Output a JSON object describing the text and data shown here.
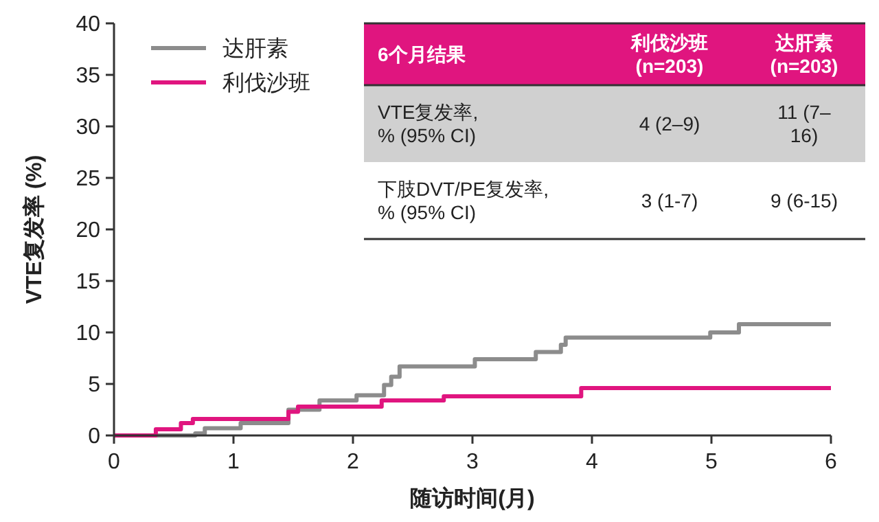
{
  "chart_data": {
    "type": "step",
    "xlabel": "随访时间(月)",
    "ylabel": "VTE复发率 (%)",
    "xlim": [
      0,
      6
    ],
    "xticks": [
      0,
      1,
      2,
      3,
      4,
      5,
      6
    ],
    "ylim": [
      0,
      40
    ],
    "yticks": [
      0,
      5,
      10,
      15,
      20,
      25,
      30,
      35,
      40
    ],
    "grid": false,
    "legend": "top left",
    "line_style": "solid",
    "series": [
      {
        "name": "达肝素",
        "color": "#8c8c8c",
        "x": [
          0,
          0.68,
          0.76,
          1.06,
          1.46,
          1.72,
          2.03,
          2.26,
          2.32,
          2.39,
          3.02,
          3.53,
          3.74,
          3.78,
          4.99,
          5.23,
          6
        ],
        "values": [
          0,
          0.2,
          0.7,
          1.2,
          2.5,
          3.4,
          3.9,
          4.9,
          5.7,
          6.7,
          7.4,
          8.1,
          8.8,
          9.5,
          10,
          10.8,
          10.8
        ]
      },
      {
        "name": "利伐沙班",
        "color": "#e0157f",
        "x": [
          0,
          0.35,
          0.56,
          0.66,
          1.46,
          1.54,
          2.24,
          2.76,
          3.91,
          6
        ],
        "values": [
          0,
          0.6,
          1.2,
          1.6,
          2.3,
          2.8,
          3.4,
          3.8,
          4.6,
          4.6
        ]
      }
    ],
    "annotations": [
      "6个月结果",
      "利伐沙班\n(n=203)",
      "达肝素\n(n=203)",
      "VTE复发率,\n% (95% CI)",
      "4 (2–9)",
      "11 (7–\n16)",
      "下肢DVT/PE复发率,\n% (95% CI)",
      "3 (1-7)",
      "9 (6-15)"
    ]
  }
}
